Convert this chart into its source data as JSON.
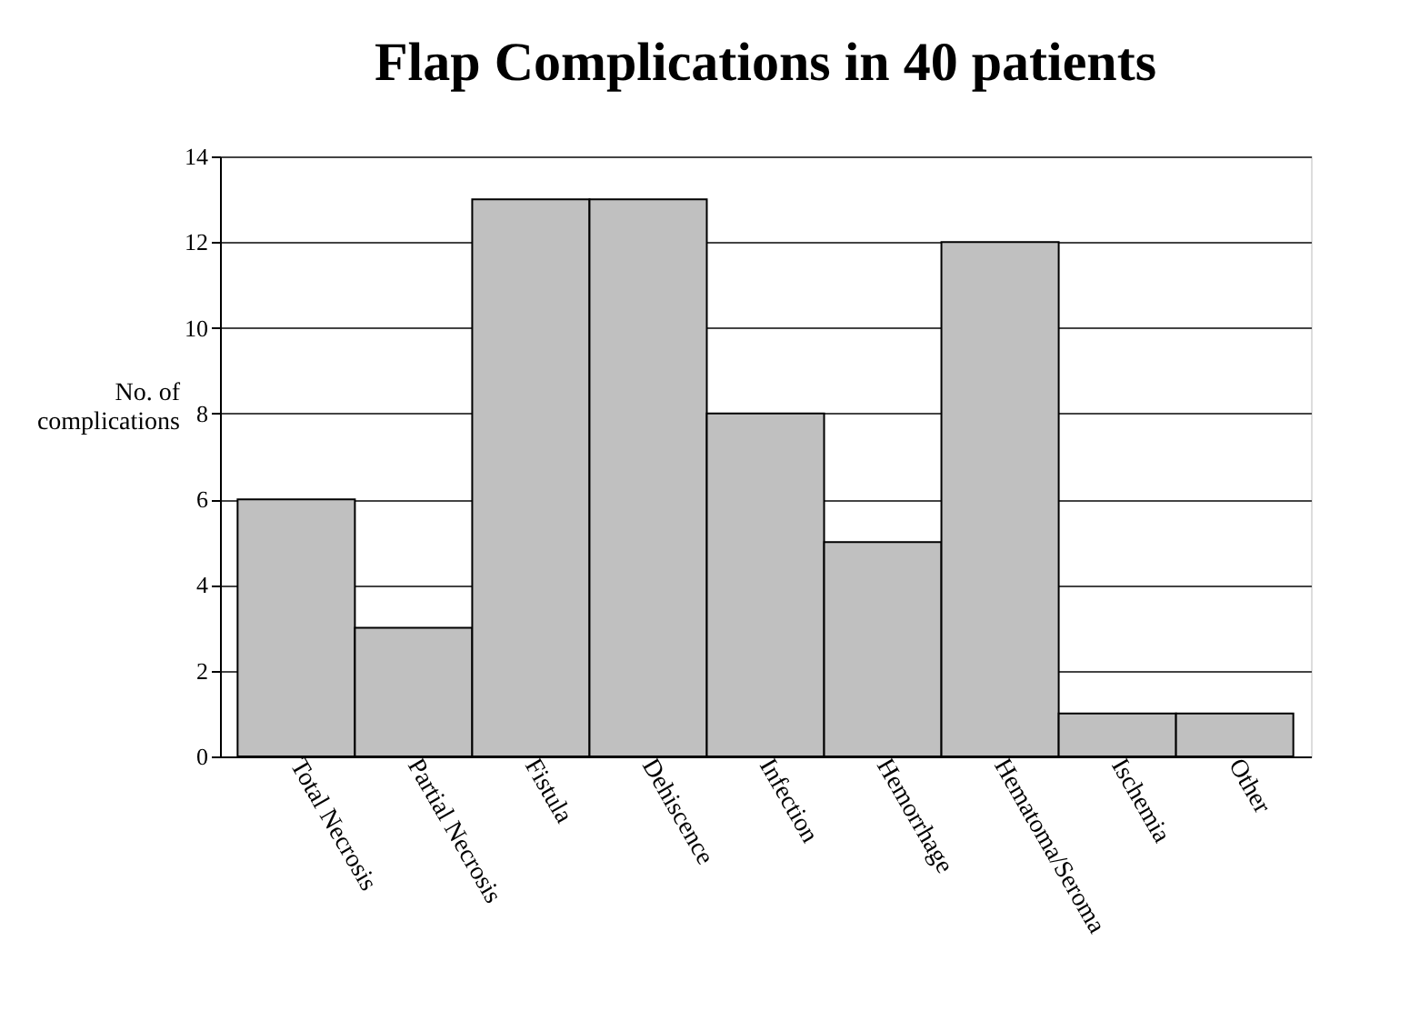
{
  "chart_data": {
    "type": "bar",
    "title": "Flap Complications in 40 patients",
    "ylabel": "No. of complications",
    "categories": [
      "Total Necrosis",
      "Partial Necrosis",
      "Fistula",
      "Dehiscence",
      "Infection",
      "Hemorrhage",
      "Hematoma/Seroma",
      "Ischemia",
      "Other"
    ],
    "values": [
      6,
      3,
      13,
      13,
      8,
      5,
      12,
      1,
      1
    ],
    "color": "#c0c0c0",
    "ylim": [
      0,
      14
    ],
    "yticks": [
      0,
      2,
      4,
      6,
      8,
      10,
      12,
      14
    ],
    "grid": "y"
  }
}
